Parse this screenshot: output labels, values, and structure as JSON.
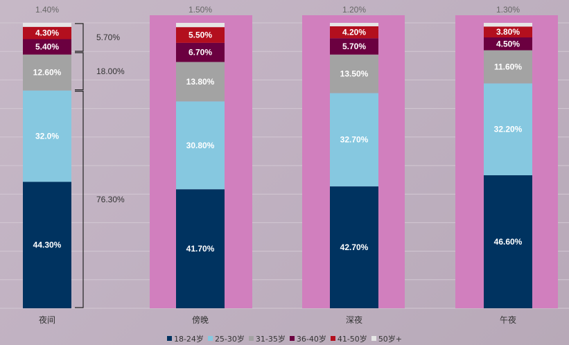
{
  "chart_data": {
    "type": "bar",
    "stacked": true,
    "categories": [
      "夜间",
      "傍晚",
      "深夜",
      "午夜"
    ],
    "series": [
      {
        "name": "18-24岁",
        "color": "#003360",
        "values": [
          44.3,
          41.7,
          42.7,
          46.6
        ],
        "labels": [
          "44.30%",
          "41.70%",
          "42.70%",
          "46.60%"
        ]
      },
      {
        "name": "25-30岁",
        "color": "#86c8e0",
        "values": [
          32.0,
          30.8,
          32.7,
          32.2
        ],
        "labels": [
          "32.0%",
          "30.80%",
          "32.70%",
          "32.20%"
        ]
      },
      {
        "name": "31-35岁",
        "color": "#a3a3a3",
        "values": [
          12.6,
          13.8,
          13.5,
          11.6
        ],
        "labels": [
          "12.60%",
          "13.80%",
          "13.50%",
          "11.60%"
        ]
      },
      {
        "name": "36-40岁",
        "color": "#6b0040",
        "values": [
          5.4,
          6.7,
          5.7,
          4.5
        ],
        "labels": [
          "5.40%",
          "6.70%",
          "5.70%",
          "4.50%"
        ]
      },
      {
        "name": "41-50岁",
        "color": "#b30f1e",
        "values": [
          4.3,
          5.5,
          4.2,
          3.8
        ],
        "labels": [
          "4.30%",
          "5.50%",
          "4.20%",
          "3.80%"
        ]
      },
      {
        "name": "50岁+",
        "color": "#e6e6e6",
        "values": [
          1.4,
          1.5,
          1.2,
          1.3
        ],
        "labels": [
          "1.40%",
          "1.50%",
          "1.20%",
          "1.30%"
        ]
      }
    ],
    "highlighted_categories": [
      "傍晚",
      "深夜",
      "午夜"
    ],
    "highlight_color": "#d17fbe",
    "bracket_annotations": [
      {
        "label": "5.70%",
        "from": 89.8,
        "to": 100
      },
      {
        "label": "18.00%",
        "from": 76.3,
        "to": 89.8
      },
      {
        "label": "76.30%",
        "from": 0,
        "to": 76.3
      }
    ],
    "ylim": [
      0,
      100
    ],
    "gridlines": true,
    "legend_position": "bottom"
  }
}
